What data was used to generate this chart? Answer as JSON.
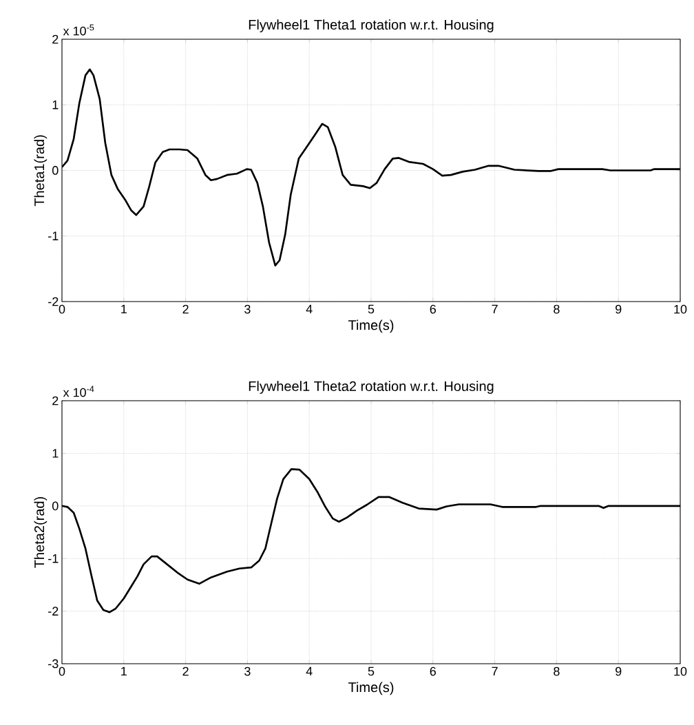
{
  "chart_data": [
    {
      "type": "line",
      "title": "Flywheel1 Theta1 rotation w.r.t. Housing",
      "xlabel": "Time(s)",
      "ylabel": "Theta1(rad)",
      "annotations": [
        "x 10$^{-5}$"
      ],
      "x": [
        0,
        0.09,
        0.19,
        0.28,
        0.38,
        0.45,
        0.51,
        0.61,
        0.7,
        0.8,
        0.9,
        1.03,
        1.12,
        1.2,
        1.32,
        1.41,
        1.51,
        1.63,
        1.74,
        1.9,
        2.03,
        2.19,
        2.32,
        2.41,
        2.51,
        2.67,
        2.83,
        2.99,
        3.06,
        3.16,
        3.25,
        3.35,
        3.45,
        3.52,
        3.61,
        3.7,
        3.83,
        3.96,
        4.09,
        4.21,
        4.3,
        4.42,
        4.54,
        4.67,
        4.87,
        4.98,
        5.09,
        5.22,
        5.35,
        5.45,
        5.61,
        5.84,
        6.0,
        6.15,
        6.29,
        6.48,
        6.68,
        6.9,
        7.06,
        7.32,
        7.71,
        7.9,
        8.03,
        8.74,
        8.87,
        9.52,
        9.58,
        10
      ],
      "series": [
        {
          "color": "#000000",
          "values": [
            0.05,
            0.15,
            0.48,
            1.02,
            1.45,
            1.54,
            1.45,
            1.09,
            0.42,
            -0.07,
            -0.28,
            -0.46,
            -0.61,
            -0.68,
            -0.55,
            -0.25,
            0.12,
            0.28,
            0.32,
            0.32,
            0.31,
            0.18,
            -0.07,
            -0.15,
            -0.13,
            -0.07,
            -0.05,
            0.02,
            0.01,
            -0.19,
            -0.55,
            -1.1,
            -1.45,
            -1.37,
            -0.98,
            -0.37,
            0.18,
            0.36,
            0.54,
            0.71,
            0.66,
            0.36,
            -0.07,
            -0.22,
            -0.24,
            -0.27,
            -0.19,
            0.02,
            0.18,
            0.19,
            0.13,
            0.1,
            0.02,
            -0.08,
            -0.07,
            -0.02,
            0.01,
            0.07,
            0.07,
            0.01,
            -0.01,
            -0.01,
            0.02,
            0.02,
            0,
            0,
            0.02,
            0.02
          ]
        }
      ],
      "xlim": [
        0,
        10
      ],
      "xticks": [
        0,
        1,
        2,
        3,
        4,
        5,
        6,
        7,
        8,
        9,
        10
      ],
      "ylim": [
        -2,
        2
      ],
      "yticks": [
        -2,
        -1,
        0,
        1,
        2
      ],
      "grid": true,
      "line_style": "solid"
    },
    {
      "type": "line",
      "title": "Flywheel1 Theta2 rotation w.r.t. Housing",
      "xlabel": "Time(s)",
      "ylabel": "Theta2(rad)",
      "annotations": [
        "x 10$^{-4}$"
      ],
      "x": [
        0,
        0.09,
        0.19,
        0.28,
        0.38,
        0.48,
        0.57,
        0.67,
        0.77,
        0.87,
        1.0,
        1.12,
        1.22,
        1.32,
        1.45,
        1.54,
        1.7,
        1.87,
        2.03,
        2.22,
        2.41,
        2.67,
        2.87,
        3.06,
        3.19,
        3.29,
        3.38,
        3.48,
        3.58,
        3.71,
        3.84,
        4.0,
        4.13,
        4.26,
        4.38,
        4.48,
        4.61,
        4.77,
        4.93,
        5.12,
        5.29,
        5.51,
        5.77,
        6.06,
        6.22,
        6.42,
        6.93,
        7.12,
        7.67,
        7.74,
        8.68,
        8.76,
        8.84,
        10
      ],
      "series": [
        {
          "color": "#000000",
          "values": [
            0,
            -0.02,
            -0.13,
            -0.43,
            -0.81,
            -1.34,
            -1.8,
            -1.98,
            -2.02,
            -1.95,
            -1.76,
            -1.53,
            -1.34,
            -1.11,
            -0.96,
            -0.96,
            -1.11,
            -1.27,
            -1.4,
            -1.48,
            -1.36,
            -1.25,
            -1.19,
            -1.17,
            -1.04,
            -0.81,
            -0.36,
            0.14,
            0.51,
            0.7,
            0.69,
            0.51,
            0.27,
            -0.02,
            -0.24,
            -0.3,
            -0.22,
            -0.09,
            0.02,
            0.17,
            0.17,
            0.06,
            -0.05,
            -0.07,
            -0.01,
            0.03,
            0.03,
            -0.02,
            -0.02,
            0,
            0,
            -0.04,
            0,
            0
          ]
        }
      ],
      "xlim": [
        0,
        10
      ],
      "xticks": [
        0,
        1,
        2,
        3,
        4,
        5,
        6,
        7,
        8,
        9,
        10
      ],
      "ylim": [
        -3,
        2
      ],
      "yticks": [
        -3,
        -2,
        -1,
        0,
        1,
        2
      ],
      "grid": true,
      "line_style": "solid"
    }
  ]
}
